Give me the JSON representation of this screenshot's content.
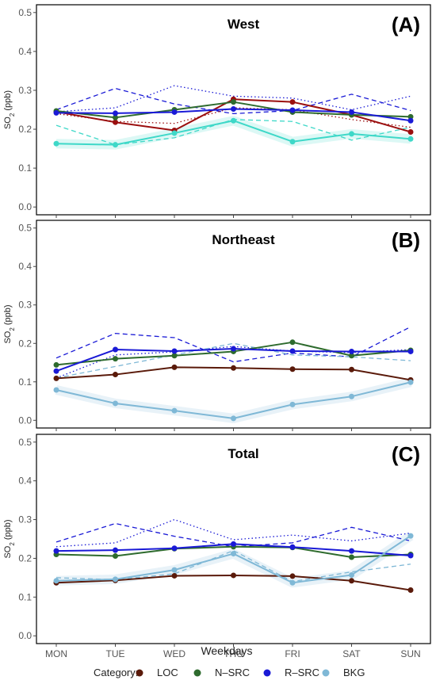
{
  "figure": {
    "xlabel": "Weekdays",
    "legend_title": "Category:"
  },
  "categories_legend": [
    {
      "key": "LOC",
      "label": "LOC",
      "color": "#5a1a0a"
    },
    {
      "key": "NSRC",
      "label": "N–SRC",
      "color": "#2e6b2e"
    },
    {
      "key": "RSRC",
      "label": "R–SRC",
      "color": "#1a1ad6"
    },
    {
      "key": "BKG",
      "label": "BKG",
      "color": "#7fb8d6"
    }
  ],
  "chart_data": [
    {
      "type": "line",
      "title": "West",
      "panel_label": "(A)",
      "ylabel": "SO2 (ppb)",
      "ylim": [
        -0.02,
        0.52
      ],
      "yticks": [
        "0.0",
        "0.1",
        "0.2",
        "0.3",
        "0.4",
        "0.5"
      ],
      "x": [
        "MON",
        "TUE",
        "WED",
        "THU",
        "FRI",
        "SAT",
        "SUN"
      ],
      "series": [
        {
          "key": "LOC",
          "values": [
            0.245,
            0.218,
            0.197,
            0.277,
            0.27,
            0.237,
            0.193
          ],
          "color": "#9b0f0f"
        },
        {
          "key": "NSRC",
          "values": [
            0.247,
            0.23,
            0.25,
            0.27,
            0.244,
            0.237,
            0.232
          ],
          "color": "#2e6b2e"
        },
        {
          "key": "RSRC",
          "values": [
            0.242,
            0.241,
            0.244,
            0.252,
            0.249,
            0.244,
            0.222
          ],
          "color": "#1a1ad6"
        },
        {
          "key": "BKG",
          "values": [
            0.163,
            0.16,
            0.19,
            0.222,
            0.168,
            0.188,
            0.175
          ],
          "color": "#3ed8c8"
        }
      ],
      "bands": [
        {
          "style": "dashed",
          "color": "#1a1ad6",
          "values": [
            0.25,
            0.305,
            0.265,
            0.24,
            0.248,
            0.29,
            0.248
          ]
        },
        {
          "style": "dotted",
          "color": "#1a1ad6",
          "values": [
            0.245,
            0.255,
            0.312,
            0.285,
            0.28,
            0.25,
            0.285
          ]
        },
        {
          "style": "dashed",
          "color": "#3ed8c8",
          "values": [
            0.21,
            0.16,
            0.178,
            0.225,
            0.22,
            0.172,
            0.205
          ]
        },
        {
          "style": "dotted",
          "color": "#9b0f0f",
          "values": [
            0.24,
            0.22,
            0.215,
            0.255,
            0.25,
            0.225,
            0.205
          ]
        }
      ]
    },
    {
      "type": "line",
      "title": "Northeast",
      "panel_label": "(B)",
      "ylabel": "SO2 (ppb)",
      "ylim": [
        -0.02,
        0.52
      ],
      "yticks": [
        "0.0",
        "0.1",
        "0.2",
        "0.3",
        "0.4",
        "0.5"
      ],
      "x": [
        "MON",
        "TUE",
        "WED",
        "THU",
        "FRI",
        "SAT",
        "SUN"
      ],
      "series": [
        {
          "key": "LOC",
          "values": [
            0.109,
            0.119,
            0.138,
            0.136,
            0.133,
            0.132,
            0.105
          ],
          "color": "#5a1a0a"
        },
        {
          "key": "NSRC",
          "values": [
            0.144,
            0.16,
            0.168,
            0.179,
            0.203,
            0.168,
            0.182
          ],
          "color": "#2e6b2e"
        },
        {
          "key": "RSRC",
          "values": [
            0.128,
            0.184,
            0.18,
            0.186,
            0.18,
            0.179,
            0.179
          ],
          "color": "#1a1ad6"
        },
        {
          "key": "BKG",
          "values": [
            0.079,
            0.044,
            0.025,
            0.005,
            0.041,
            0.062,
            0.099
          ],
          "color": "#7fb8d6"
        }
      ],
      "bands": [
        {
          "style": "dashed",
          "color": "#1a1ad6",
          "values": [
            0.162,
            0.226,
            0.215,
            0.152,
            0.175,
            0.165,
            0.243
          ]
        },
        {
          "style": "dotted",
          "color": "#1a1ad6",
          "values": [
            0.11,
            0.17,
            0.178,
            0.192,
            0.18,
            0.176,
            0.184
          ]
        },
        {
          "style": "dashed",
          "color": "#7fb8d6",
          "values": [
            0.11,
            0.14,
            0.17,
            0.2,
            0.17,
            0.165,
            0.155
          ]
        }
      ]
    },
    {
      "type": "line",
      "title": "Total",
      "panel_label": "(C)",
      "ylabel": "SO2 (ppb)",
      "ylim": [
        -0.02,
        0.52
      ],
      "yticks": [
        "0.0",
        "0.1",
        "0.2",
        "0.3",
        "0.4",
        "0.5"
      ],
      "x": [
        "MON",
        "TUE",
        "WED",
        "THU",
        "FRI",
        "SAT",
        "SUN"
      ],
      "series": [
        {
          "key": "LOC",
          "values": [
            0.137,
            0.143,
            0.155,
            0.156,
            0.154,
            0.142,
            0.118
          ],
          "color": "#5a1a0a"
        },
        {
          "key": "NSRC",
          "values": [
            0.21,
            0.206,
            0.225,
            0.23,
            0.228,
            0.203,
            0.21
          ],
          "color": "#2e6b2e"
        },
        {
          "key": "RSRC",
          "values": [
            0.219,
            0.221,
            0.226,
            0.237,
            0.229,
            0.219,
            0.207
          ],
          "color": "#1a1ad6"
        },
        {
          "key": "BKG",
          "values": [
            0.142,
            0.146,
            0.17,
            0.212,
            0.137,
            0.157,
            0.258
          ],
          "color": "#7fb8d6"
        }
      ],
      "bands": [
        {
          "style": "dashed",
          "color": "#1a1ad6",
          "values": [
            0.242,
            0.29,
            0.257,
            0.23,
            0.24,
            0.28,
            0.245
          ]
        },
        {
          "style": "dotted",
          "color": "#1a1ad6",
          "values": [
            0.23,
            0.24,
            0.3,
            0.248,
            0.26,
            0.245,
            0.265
          ]
        },
        {
          "style": "dashed",
          "color": "#7fb8d6",
          "values": [
            0.15,
            0.145,
            0.16,
            0.22,
            0.14,
            0.165,
            0.185
          ]
        }
      ]
    }
  ]
}
